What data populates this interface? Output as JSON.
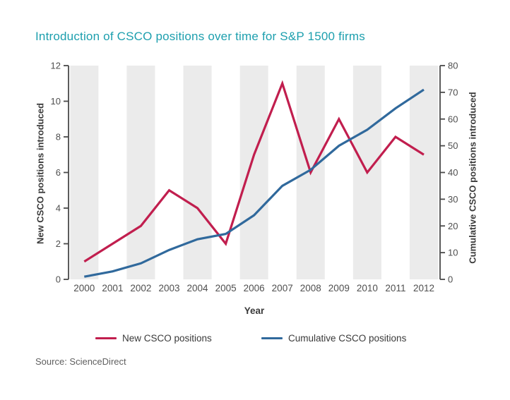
{
  "chart_data": {
    "type": "line",
    "title": "Introduction of CSCO positions over time for S&P 1500 firms",
    "x": [
      2000,
      2001,
      2002,
      2003,
      2004,
      2005,
      2006,
      2007,
      2008,
      2009,
      2010,
      2011,
      2012
    ],
    "xlabel": "Year",
    "series": [
      {
        "name": "New CSCO positions",
        "axis": "left",
        "color": "#c11e4e",
        "values": [
          1,
          2,
          3,
          5,
          4,
          2,
          7,
          11,
          6,
          9,
          6,
          8,
          7
        ]
      },
      {
        "name": "Cumulative CSCO positions",
        "axis": "right",
        "color": "#30699c",
        "values": [
          1,
          3,
          6,
          11,
          15,
          17,
          24,
          35,
          41,
          50,
          56,
          64,
          71
        ]
      }
    ],
    "left_axis": {
      "label": "New CSCO positions introduced",
      "min": 0,
      "max": 12,
      "ticks": [
        0,
        2,
        4,
        6,
        8,
        10,
        12
      ]
    },
    "right_axis": {
      "label": "Cumulative CSCO positions introduced",
      "min": 0,
      "max": 80,
      "ticks": [
        0,
        10,
        20,
        30,
        40,
        50,
        60,
        70,
        80
      ]
    },
    "legend_position": "bottom",
    "background_bands": "alternating vertical shading on even years",
    "grid": false
  },
  "source": "Source: ScienceDirect",
  "colors": {
    "title": "#1d9fae",
    "band": "#ebebeb",
    "axis": "#4a4a4a",
    "tick_text": "#4f4f4f",
    "label_text": "#3a3a3a",
    "source_text": "#5f5f5f"
  }
}
